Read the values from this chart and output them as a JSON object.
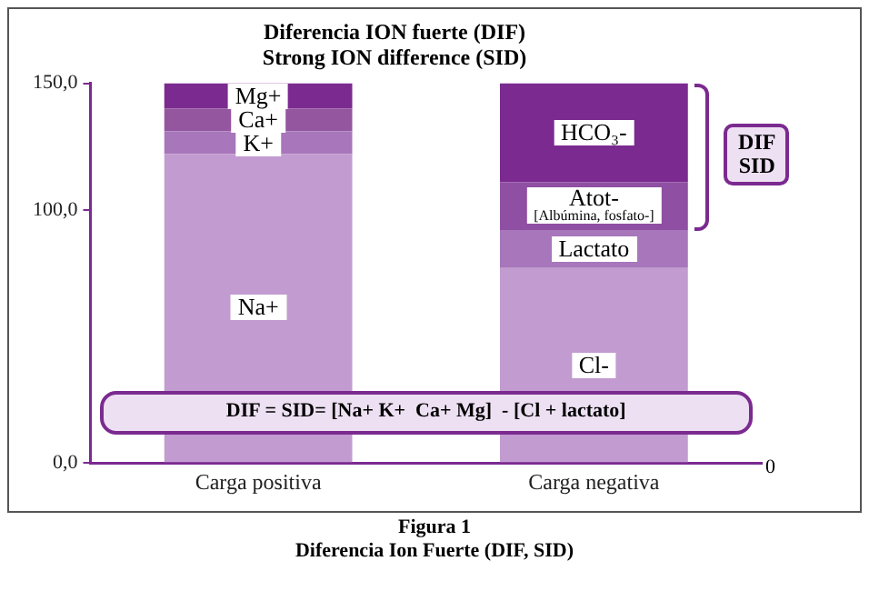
{
  "chart_data": {
    "type": "bar",
    "title": "Diferencia ION fuerte (DIF)",
    "subtitle": "Strong ION difference (SID)",
    "categories": [
      "Carga positiva",
      "Carga negativa"
    ],
    "stacked": true,
    "series": [
      {
        "name": "Na+",
        "color": "#c29bd0",
        "values": [
          122,
          null
        ]
      },
      {
        "name": "K+",
        "color": "#a776bb",
        "values": [
          9,
          null
        ]
      },
      {
        "name": "Ca+",
        "color": "#93569f",
        "values": [
          9,
          null
        ]
      },
      {
        "name": "Mg+",
        "color": "#7b2a90",
        "values": [
          10,
          null
        ]
      },
      {
        "name": "Cl-",
        "color": "#c29bd0",
        "values": [
          null,
          77
        ]
      },
      {
        "name": "Lactato",
        "color": "#a776bb",
        "values": [
          null,
          15
        ]
      },
      {
        "name": "Atot-",
        "color": "#8f4fa3",
        "values": [
          null,
          19
        ]
      },
      {
        "name": "HCO₃-",
        "color": "#7b2a90",
        "values": [
          null,
          39
        ]
      }
    ],
    "ylim": [
      0,
      150
    ],
    "yticks": [
      {
        "value": 0,
        "label": "0,0"
      },
      {
        "value": 100,
        "label": "100,0"
      },
      {
        "value": 150,
        "label": "150,0"
      }
    ],
    "grid": false,
    "legend": false,
    "annotations": [
      "DIF = SID= [Na+ K+  Ca+ Mg]  - [Cl + lactato]",
      "[Albúmina, fosfato-]",
      "DIF SID",
      "0",
      "Figura 1",
      "Diferencia Ion Fuerte (DIF, SID)"
    ]
  }
}
